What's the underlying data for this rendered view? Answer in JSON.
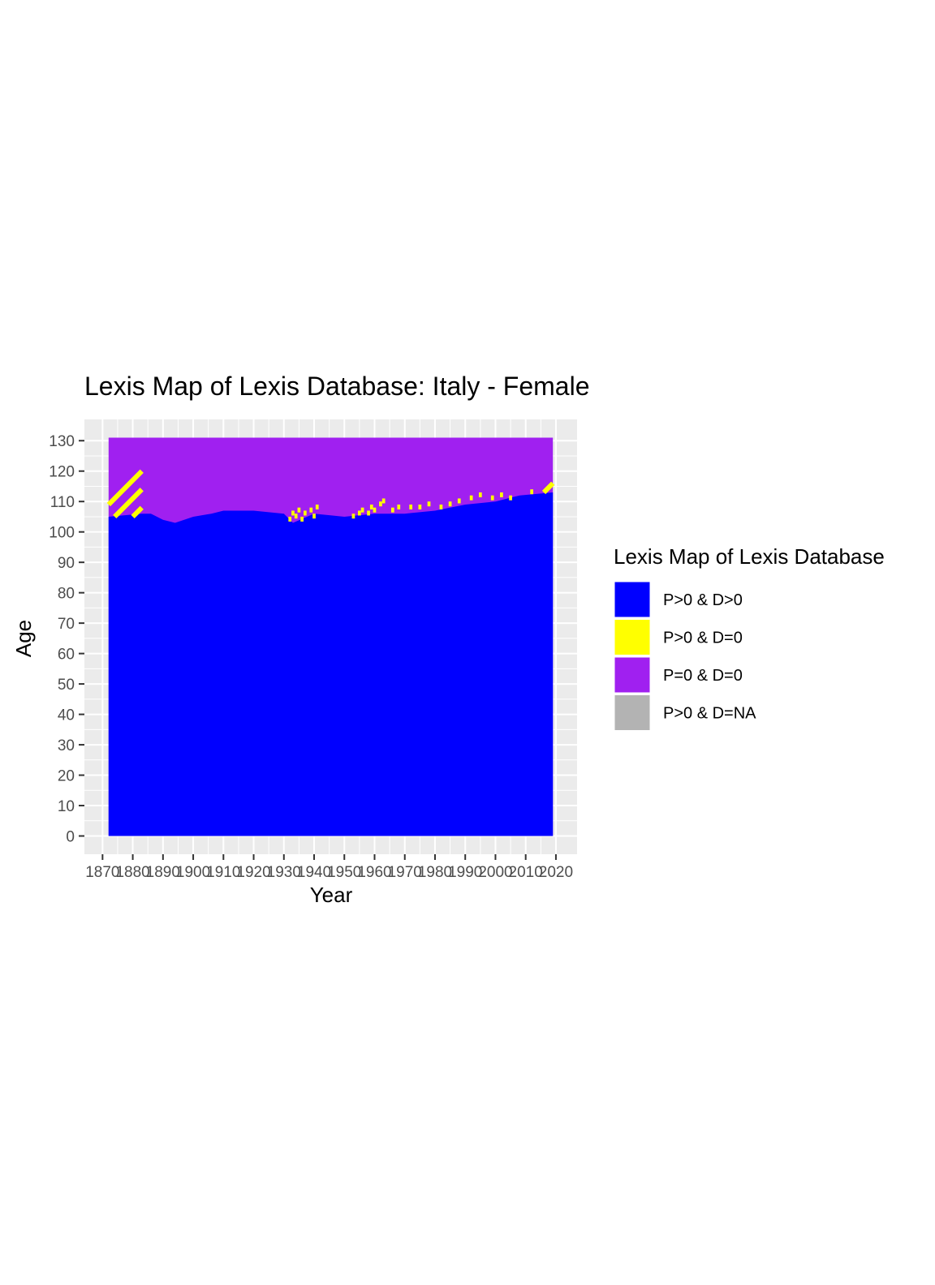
{
  "chart_data": {
    "type": "heatmap",
    "title": "Lexis Map of Lexis Database: Italy  - Female",
    "xlabel": "Year",
    "ylabel": "Age",
    "xlim": [
      1864,
      2027
    ],
    "ylim": [
      -6,
      137
    ],
    "x_ticks": [
      1870,
      1880,
      1890,
      1900,
      1910,
      1920,
      1930,
      1940,
      1950,
      1960,
      1970,
      1980,
      1990,
      2000,
      2010,
      2020
    ],
    "x_tick_labels": [
      "1870",
      "1880",
      "1890",
      "1900",
      "1910",
      "1920",
      "1930",
      "1940",
      "1950",
      "1960",
      "1970",
      "1980",
      "1990",
      "2000",
      "2010",
      "2020"
    ],
    "y_ticks": [
      0,
      10,
      20,
      30,
      40,
      50,
      60,
      70,
      80,
      90,
      100,
      110,
      120,
      130
    ],
    "y_tick_labels": [
      "0",
      "10",
      "20",
      "30",
      "40",
      "50",
      "60",
      "70",
      "80",
      "90",
      "100",
      "110",
      "120",
      "130"
    ],
    "grid": true,
    "data_extent": {
      "year_min": 1872,
      "year_max": 2019,
      "age_min": 0,
      "age_max": 131
    },
    "boundary": [
      {
        "year": 1872,
        "age": 105
      },
      {
        "year": 1883,
        "age": 106
      },
      {
        "year": 1886,
        "age": 106
      },
      {
        "year": 1890,
        "age": 104
      },
      {
        "year": 1894,
        "age": 103
      },
      {
        "year": 1900,
        "age": 105
      },
      {
        "year": 1906,
        "age": 106
      },
      {
        "year": 1910,
        "age": 107
      },
      {
        "year": 1920,
        "age": 107
      },
      {
        "year": 1930,
        "age": 106
      },
      {
        "year": 1933,
        "age": 103
      },
      {
        "year": 1940,
        "age": 106
      },
      {
        "year": 1950,
        "age": 105
      },
      {
        "year": 1960,
        "age": 106
      },
      {
        "year": 1970,
        "age": 106
      },
      {
        "year": 1980,
        "age": 107
      },
      {
        "year": 1990,
        "age": 109
      },
      {
        "year": 2000,
        "age": 110
      },
      {
        "year": 2008,
        "age": 112
      },
      {
        "year": 2019,
        "age": 113
      }
    ],
    "yellow_diagonals": [
      {
        "year_start": 1872,
        "age_start": 109,
        "year_end": 1883,
        "age_end": 120
      },
      {
        "year_start": 1874,
        "age_start": 105,
        "year_end": 1883,
        "age_end": 114
      },
      {
        "year_start": 1880,
        "age_start": 105,
        "year_end": 1883,
        "age_end": 108
      },
      {
        "year_start": 2016,
        "age_start": 113,
        "year_end": 2019,
        "age_end": 116
      }
    ],
    "yellow_scatter": [
      {
        "year": 1932,
        "age": 104
      },
      {
        "year": 1933,
        "age": 106
      },
      {
        "year": 1934,
        "age": 105
      },
      {
        "year": 1935,
        "age": 107
      },
      {
        "year": 1936,
        "age": 104
      },
      {
        "year": 1937,
        "age": 106
      },
      {
        "year": 1939,
        "age": 107
      },
      {
        "year": 1940,
        "age": 105
      },
      {
        "year": 1941,
        "age": 108
      },
      {
        "year": 1953,
        "age": 105
      },
      {
        "year": 1955,
        "age": 106
      },
      {
        "year": 1956,
        "age": 107
      },
      {
        "year": 1958,
        "age": 106
      },
      {
        "year": 1959,
        "age": 108
      },
      {
        "year": 1960,
        "age": 107
      },
      {
        "year": 1962,
        "age": 109
      },
      {
        "year": 1963,
        "age": 110
      },
      {
        "year": 1966,
        "age": 107
      },
      {
        "year": 1968,
        "age": 108
      },
      {
        "year": 1972,
        "age": 108
      },
      {
        "year": 1975,
        "age": 108
      },
      {
        "year": 1978,
        "age": 109
      },
      {
        "year": 1982,
        "age": 108
      },
      {
        "year": 1985,
        "age": 109
      },
      {
        "year": 1988,
        "age": 110
      },
      {
        "year": 1992,
        "age": 111
      },
      {
        "year": 1995,
        "age": 112
      },
      {
        "year": 1999,
        "age": 111
      },
      {
        "year": 2002,
        "age": 112
      },
      {
        "year": 2005,
        "age": 111
      },
      {
        "year": 2012,
        "age": 113
      }
    ],
    "legend": {
      "title": "Lexis Map of Lexis Database",
      "position": "right",
      "entries": [
        {
          "label": "P>0 & D>0",
          "color": "#0000ff"
        },
        {
          "label": "P>0 & D=0",
          "color": "#ffff00"
        },
        {
          "label": "P=0 & D=0",
          "color": "#a020f0"
        },
        {
          "label": "P>0 & D=NA",
          "color": "#b3b3b3"
        }
      ]
    },
    "panel_background": "#ebebeb",
    "grid_color": "#ffffff"
  }
}
